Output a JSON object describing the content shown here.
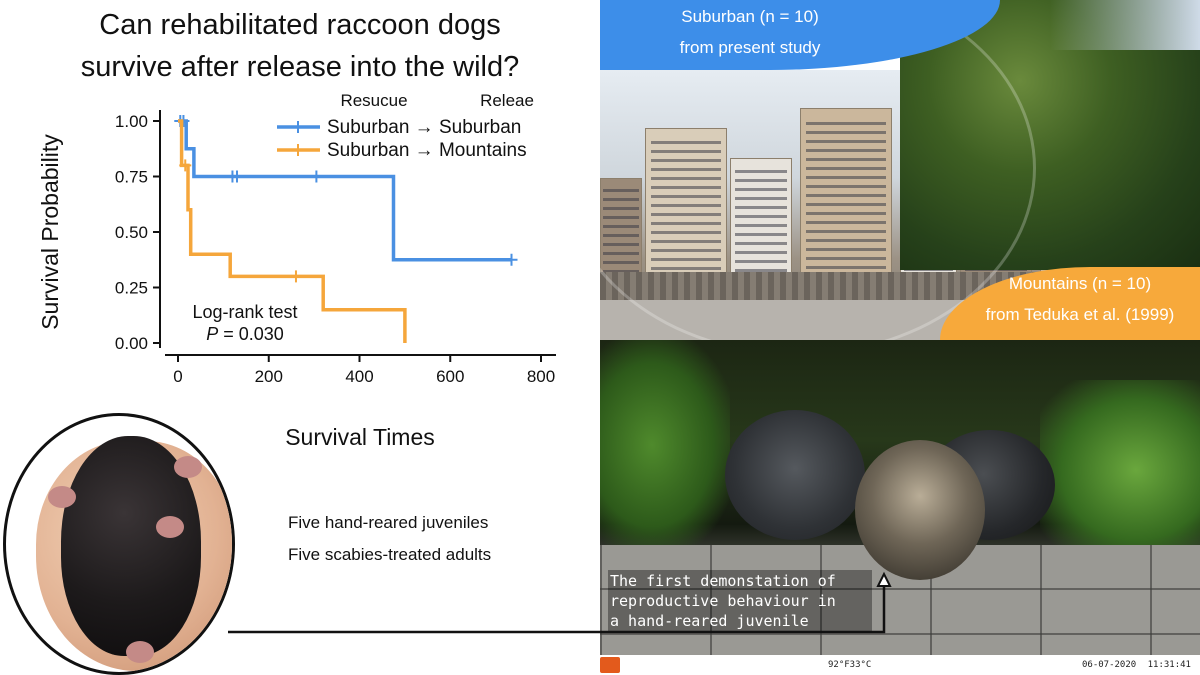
{
  "title_line1": "Can rehabilitated raccoon dogs",
  "title_line2": "survive after release into the wild?",
  "chart_data": {
    "type": "line",
    "subtype": "kaplan-meier step",
    "xlabel": "Survival Times",
    "ylabel": "Survival Probability",
    "xlim": [
      0,
      800
    ],
    "ylim": [
      0,
      1
    ],
    "xticks": [
      0,
      200,
      400,
      600,
      800
    ],
    "yticks": [
      0.0,
      0.25,
      0.5,
      0.75,
      1.0
    ],
    "ytick_labels": [
      "0.00",
      "0.25",
      "0.50",
      "0.75",
      "1.00"
    ],
    "grid": false,
    "legend_header_rescue": "Resucue",
    "legend_header_release": "Releae",
    "legend_placement": "top-right",
    "annotation_line1": "Log-rank test",
    "annotation_p_label": "P",
    "annotation_p_value": " = 0.030",
    "series": [
      {
        "name": "Suburban → Suburban",
        "color": "#4a90e2",
        "steps": [
          [
            0,
            1.0
          ],
          [
            18,
            1.0
          ],
          [
            18,
            0.875
          ],
          [
            35,
            0.875
          ],
          [
            35,
            0.75
          ],
          [
            475,
            0.75
          ],
          [
            475,
            0.375
          ],
          [
            735,
            0.375
          ]
        ],
        "censored": [
          [
            5,
            1.0
          ],
          [
            12,
            1.0
          ],
          [
            120,
            0.75
          ],
          [
            130,
            0.75
          ],
          [
            305,
            0.75
          ],
          [
            735,
            0.375
          ]
        ]
      },
      {
        "name": "Suburban → Mountains",
        "color": "#f5a63b",
        "steps": [
          [
            0,
            1.0
          ],
          [
            8,
            1.0
          ],
          [
            8,
            0.8
          ],
          [
            22,
            0.8
          ],
          [
            22,
            0.6
          ],
          [
            28,
            0.6
          ],
          [
            28,
            0.4
          ],
          [
            115,
            0.4
          ],
          [
            115,
            0.3
          ],
          [
            320,
            0.3
          ],
          [
            320,
            0.15
          ],
          [
            500,
            0.15
          ],
          [
            500,
            0.0
          ]
        ],
        "censored": [
          [
            16,
            0.8
          ],
          [
            260,
            0.3
          ]
        ]
      }
    ]
  },
  "photo_suburban_line1": "Suburban (n = 10)",
  "photo_suburban_line2": "from present study",
  "photo_mountains_line1": "Mountains (n = 10)",
  "photo_mountains_line2": "from Teduka et al. (1999)",
  "juveniles_text": "Five hand-reared juveniles",
  "adults_text": "Five scabies-treated adults",
  "camera_caption_line1": "The first demonstation of",
  "camera_caption_line2": "reproductive behaviour in",
  "camera_caption_line3": "a hand-reared juvenile",
  "camera_temperature": "92°F33°C",
  "camera_date": "06-07-2020",
  "camera_clock": "11:31:41",
  "colors": {
    "suburban": "#4a90e2",
    "mountains": "#f5a63b",
    "banner_blue": "#3d8ee9",
    "banner_orange": "#f7a93b"
  }
}
